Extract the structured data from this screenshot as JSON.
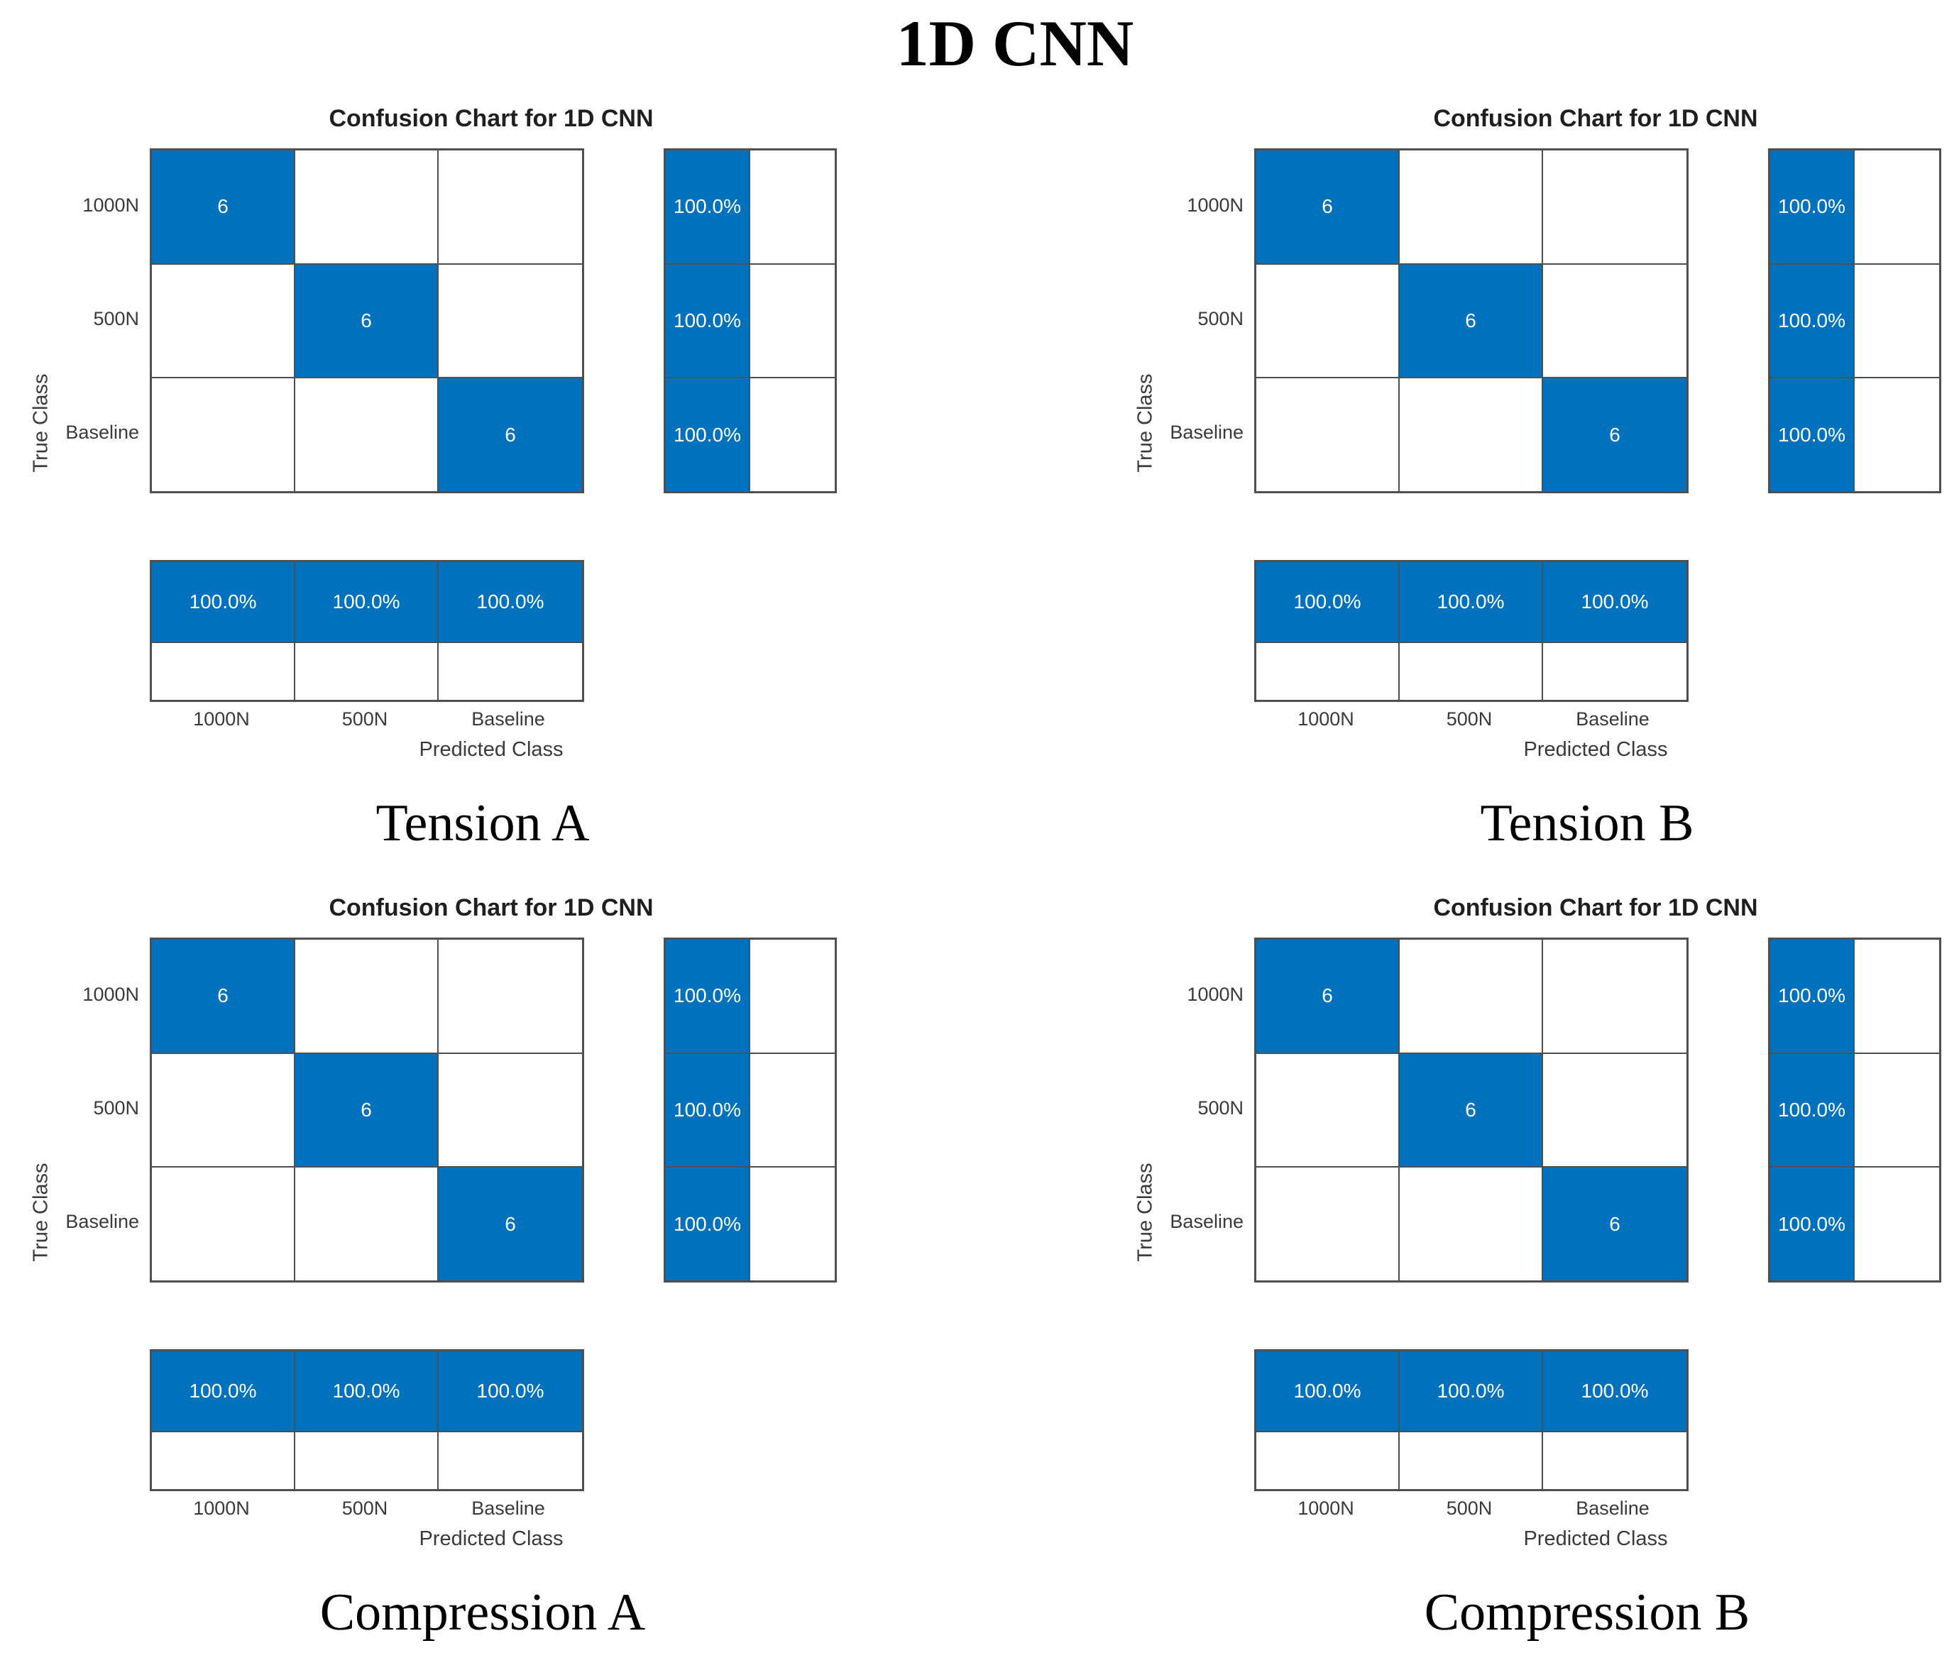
{
  "main_title": "1D CNN",
  "colors": {
    "cell_blue": "#0072BD",
    "grid_line": "#4F4F4F",
    "tick_text": "#3A3A3A",
    "title_text": "#1F1F1F",
    "cell_value_text": "#FFFFFF"
  },
  "chart_data": [
    {
      "type": "heatmap",
      "title": "Confusion Chart for 1D CNN",
      "panel_label": "Tension A",
      "xlabel": "Predicted Class",
      "ylabel": "True Class",
      "classes": [
        "1000N",
        "500N",
        "Baseline"
      ],
      "matrix": [
        [
          6,
          0,
          0
        ],
        [
          0,
          6,
          0
        ],
        [
          0,
          0,
          6
        ]
      ],
      "row_summary": {
        "correct": [
          "100.0%",
          "100.0%",
          "100.0%"
        ],
        "incorrect": [
          "",
          "",
          ""
        ]
      },
      "col_summary": {
        "correct": [
          "100.0%",
          "100.0%",
          "100.0%"
        ],
        "incorrect": [
          "",
          "",
          ""
        ]
      }
    },
    {
      "type": "heatmap",
      "title": "Confusion Chart for 1D CNN",
      "panel_label": "Tension B",
      "xlabel": "Predicted Class",
      "ylabel": "True Class",
      "classes": [
        "1000N",
        "500N",
        "Baseline"
      ],
      "matrix": [
        [
          6,
          0,
          0
        ],
        [
          0,
          6,
          0
        ],
        [
          0,
          0,
          6
        ]
      ],
      "row_summary": {
        "correct": [
          "100.0%",
          "100.0%",
          "100.0%"
        ],
        "incorrect": [
          "",
          "",
          ""
        ]
      },
      "col_summary": {
        "correct": [
          "100.0%",
          "100.0%",
          "100.0%"
        ],
        "incorrect": [
          "",
          "",
          ""
        ]
      }
    },
    {
      "type": "heatmap",
      "title": "Confusion Chart for 1D CNN",
      "panel_label": "Compression A",
      "xlabel": "Predicted Class",
      "ylabel": "True Class",
      "classes": [
        "1000N",
        "500N",
        "Baseline"
      ],
      "matrix": [
        [
          6,
          0,
          0
        ],
        [
          0,
          6,
          0
        ],
        [
          0,
          0,
          6
        ]
      ],
      "row_summary": {
        "correct": [
          "100.0%",
          "100.0%",
          "100.0%"
        ],
        "incorrect": [
          "",
          "",
          ""
        ]
      },
      "col_summary": {
        "correct": [
          "100.0%",
          "100.0%",
          "100.0%"
        ],
        "incorrect": [
          "",
          "",
          ""
        ]
      }
    },
    {
      "type": "heatmap",
      "title": "Confusion Chart for 1D CNN",
      "panel_label": "Compression B",
      "xlabel": "Predicted Class",
      "ylabel": "True Class",
      "classes": [
        "1000N",
        "500N",
        "Baseline"
      ],
      "matrix": [
        [
          6,
          0,
          0
        ],
        [
          0,
          6,
          0
        ],
        [
          0,
          0,
          6
        ]
      ],
      "row_summary": {
        "correct": [
          "100.0%",
          "100.0%",
          "100.0%"
        ],
        "incorrect": [
          "",
          "",
          ""
        ]
      },
      "col_summary": {
        "correct": [
          "100.0%",
          "100.0%",
          "100.0%"
        ],
        "incorrect": [
          "",
          "",
          ""
        ]
      }
    }
  ]
}
